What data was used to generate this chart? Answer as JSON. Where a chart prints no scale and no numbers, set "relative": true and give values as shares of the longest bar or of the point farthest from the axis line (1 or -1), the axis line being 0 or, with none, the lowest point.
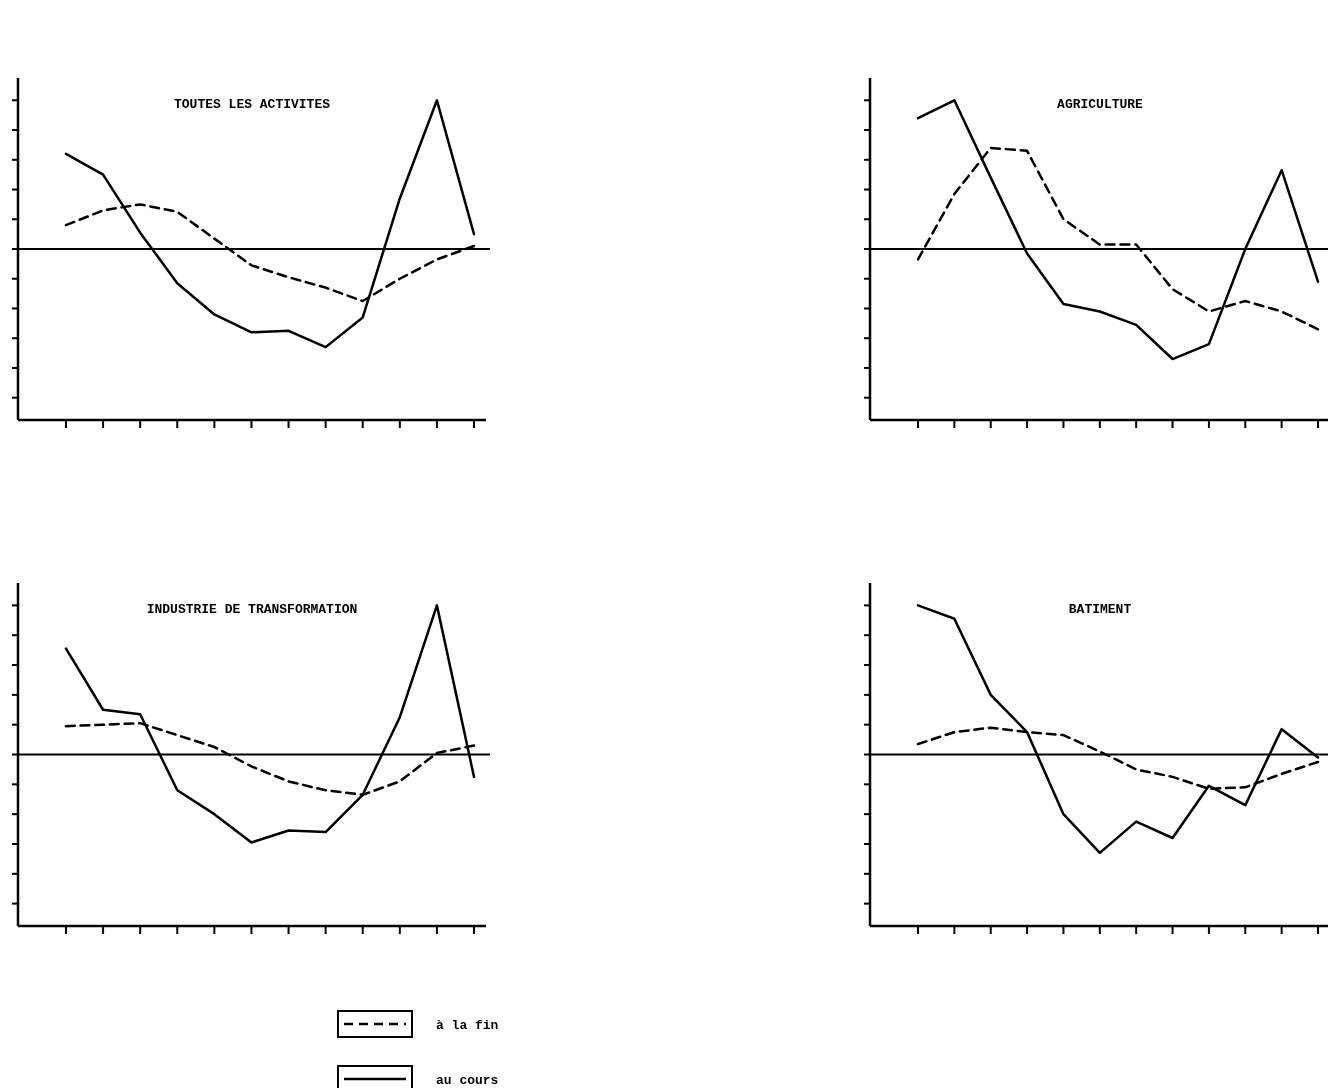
{
  "chart_data": [
    {
      "type": "line",
      "title": "TOUTES LES ACTIVITES",
      "relative": true,
      "categories": [
        null,
        null,
        null,
        null,
        null,
        null,
        null,
        null,
        null,
        null,
        null,
        null
      ],
      "series": [
        {
          "color": "#000000",
          "line_style": "dashed",
          "values": [
            0.16,
            0.26,
            0.3,
            0.25,
            0.07,
            -0.11,
            -0.19,
            -0.26,
            -0.35,
            -0.2,
            -0.07,
            0.02
          ]
        },
        {
          "color": "#000000",
          "line_style": "solid",
          "values": [
            0.64,
            0.5,
            0.11,
            -0.23,
            -0.44,
            -0.56,
            -0.55,
            -0.66,
            -0.46,
            0.34,
            1,
            0.1
          ]
        }
      ]
    },
    {
      "type": "line",
      "title": "AGRICULTURE",
      "relative": true,
      "categories": [
        null,
        null,
        null,
        null,
        null,
        null,
        null,
        null,
        null,
        null,
        null,
        null
      ],
      "series": [
        {
          "color": "#000000",
          "line_style": "dashed",
          "values": [
            -0.07,
            0.37,
            0.68,
            0.66,
            0.2,
            0.03,
            0.03,
            -0.27,
            -0.42,
            -0.35,
            -0.42,
            -0.54
          ]
        },
        {
          "color": "#000000",
          "line_style": "solid",
          "values": [
            0.88,
            1,
            0.48,
            -0.03,
            -0.37,
            -0.42,
            -0.51,
            -0.74,
            -0.64,
            0,
            0.53,
            -0.22
          ]
        }
      ]
    },
    {
      "type": "line",
      "title": "INDUSTRIE DE TRANSFORMATION",
      "relative": true,
      "legend": "bottom",
      "categories": [
        null,
        null,
        null,
        null,
        null,
        null,
        null,
        null,
        null,
        null,
        null,
        null
      ],
      "series": [
        {
          "name": "à la fin",
          "color": "#000000",
          "line_style": "dashed",
          "values": [
            0.19,
            0.2,
            0.21,
            0.13,
            0.05,
            -0.08,
            -0.18,
            -0.24,
            -0.27,
            -0.18,
            0.01,
            0.06
          ]
        },
        {
          "name": "au cours",
          "color": "#000000",
          "line_style": "solid",
          "values": [
            0.71,
            0.3,
            0.27,
            -0.24,
            -0.4,
            -0.59,
            -0.51,
            -0.52,
            -0.27,
            0.25,
            1,
            -0.15
          ]
        }
      ]
    },
    {
      "type": "line",
      "title": "BATIMENT",
      "relative": true,
      "categories": [
        null,
        null,
        null,
        null,
        null,
        null,
        null,
        null,
        null,
        null,
        null,
        null
      ],
      "series": [
        {
          "color": "#000000",
          "line_style": "dashed",
          "values": [
            0.07,
            0.15,
            0.18,
            0.15,
            0.13,
            0.02,
            -0.1,
            -0.15,
            -0.23,
            -0.22,
            -0.13,
            -0.05
          ]
        },
        {
          "color": "#000000",
          "line_style": "solid",
          "values": [
            1,
            0.91,
            0.4,
            0.15,
            -0.4,
            -0.66,
            -0.45,
            -0.56,
            -0.21,
            -0.34,
            0.17,
            -0.02
          ]
        }
      ]
    }
  ]
}
